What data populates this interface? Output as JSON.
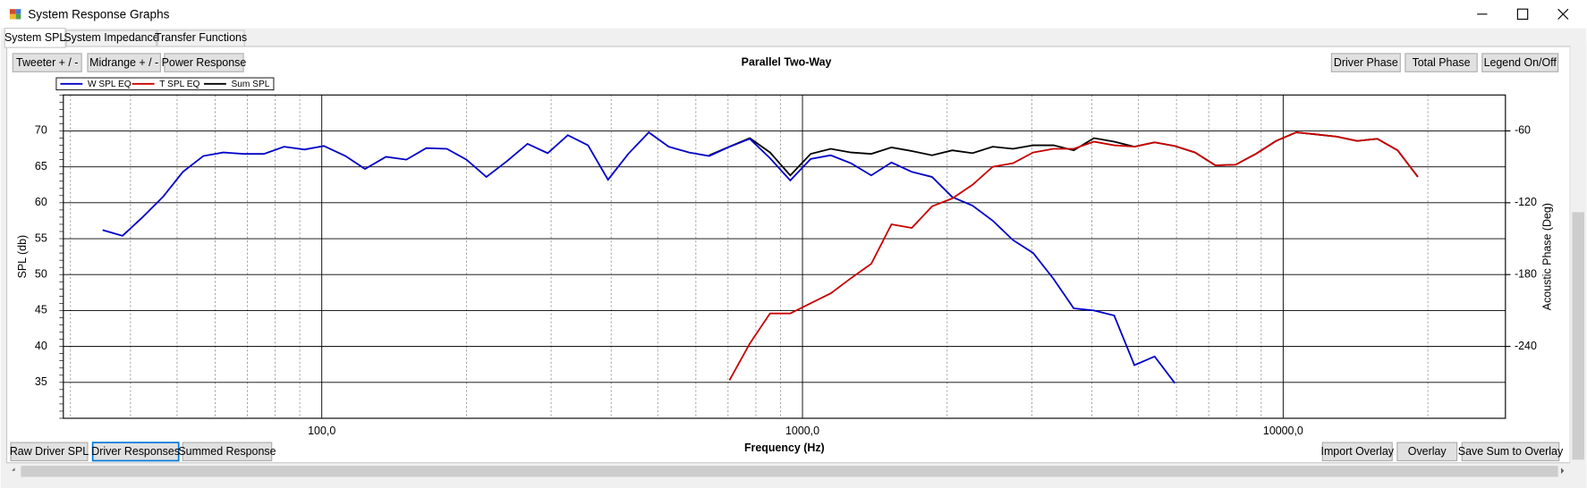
{
  "window": {
    "title": "System Response Graphs"
  },
  "tabs": [
    "System SPL",
    "System Impedance",
    "Transfer Functions"
  ],
  "top_buttons_left": [
    "Tweeter + / -",
    "Midrange + / -",
    "Power Response"
  ],
  "top_buttons_right": [
    "Driver Phase",
    "Total Phase",
    "Legend On/Off"
  ],
  "bottom_buttons_left": [
    "Raw Driver SPL",
    "Driver Responses",
    "Summed Response"
  ],
  "bottom_buttons_right": [
    "Import Overlay",
    "Overlay",
    "Save Sum to Overlay"
  ],
  "chart_data": {
    "type": "line",
    "title": "Parallel Two-Way",
    "x_label": "Frequency (Hz)",
    "y_label": "SPL (db)",
    "y2_label": "Acoustic Phase (Deg)",
    "log_x": true,
    "grid": true,
    "legend": "top-left",
    "xlim": [
      29,
      29000
    ],
    "xticks": [
      {
        "value": 100,
        "label": "100,0"
      },
      {
        "value": 1000,
        "label": "1000,0"
      },
      {
        "value": 10000,
        "label": "10000,0"
      }
    ],
    "x_minor_gridlines": [
      30,
      40,
      50,
      60,
      70,
      80,
      90,
      200,
      300,
      400,
      500,
      600,
      700,
      800,
      900,
      2000,
      3000,
      4000,
      5000,
      6000,
      7000,
      8000,
      9000,
      20000
    ],
    "ylim": [
      30,
      75
    ],
    "yticks": [
      35,
      40,
      45,
      50,
      55,
      60,
      65,
      70
    ],
    "y2lim": [
      -300,
      -30
    ],
    "y2ticks": [
      -240,
      -180,
      -120,
      -60
    ],
    "x": [
      35,
      38.5,
      42.4,
      46.7,
      51.4,
      56.7,
      62.4,
      68.8,
      75.8,
      83.5,
      92,
      101,
      112,
      123,
      136,
      150,
      165,
      182,
      200,
      220,
      243,
      268,
      295,
      325,
      358,
      394,
      434,
      479,
      527,
      581,
      640,
      705,
      777,
      856,
      943,
      1040,
      1145,
      1262,
      1390,
      1532,
      1688,
      1860,
      2049,
      2258,
      2488,
      2741,
      3020,
      3328,
      3666,
      4040,
      4451,
      4904,
      5403,
      5953,
      6559,
      7227,
      7963,
      8773,
      9667,
      10650,
      11740,
      12930,
      14250,
      15700,
      17300,
      19060,
      21000
    ],
    "series": [
      {
        "name": "W SPL EQ",
        "color": "#0000c8",
        "values": [
          56.2,
          55.4,
          58.0,
          60.8,
          64.3,
          66.5,
          67.0,
          66.8,
          66.8,
          67.8,
          67.4,
          67.9,
          66.5,
          64.7,
          66.4,
          66.0,
          67.6,
          67.5,
          66.0,
          63.6,
          65.8,
          68.2,
          66.9,
          69.4,
          68.0,
          63.2,
          66.8,
          69.8,
          67.8,
          67.0,
          66.5,
          67.8,
          68.9,
          66.2,
          63.1,
          66.1,
          66.6,
          65.5,
          63.8,
          65.6,
          64.3,
          63.6,
          60.8,
          59.6,
          57.5,
          54.8,
          53.0,
          49.4,
          45.3,
          45.0,
          44.3,
          37.4,
          38.6,
          34.9,
          null,
          null,
          null,
          null,
          null,
          null,
          null,
          null,
          null,
          null,
          null,
          null,
          null
        ]
      },
      {
        "name": "T SPL EQ",
        "color": "#c80000",
        "values": [
          null,
          null,
          null,
          null,
          null,
          null,
          null,
          null,
          null,
          null,
          null,
          null,
          null,
          null,
          null,
          null,
          null,
          null,
          null,
          null,
          null,
          null,
          null,
          null,
          null,
          null,
          null,
          null,
          null,
          null,
          null,
          35.3,
          40.4,
          44.6,
          44.6,
          46.0,
          47.4,
          49.5,
          51.5,
          57.0,
          56.5,
          59.5,
          60.6,
          62.5,
          65.0,
          65.5,
          67.0,
          67.5,
          67.5,
          68.5,
          68.0,
          67.8,
          68.4,
          67.9,
          67.0,
          65.2,
          65.3,
          66.8,
          68.6,
          69.8,
          69.5,
          69.2,
          68.6,
          68.9,
          67.3,
          63.6,
          null
        ]
      },
      {
        "name": "Sum SPL",
        "color": "#000000",
        "values": [
          null,
          null,
          null,
          null,
          null,
          null,
          null,
          null,
          null,
          null,
          null,
          null,
          null,
          null,
          null,
          null,
          null,
          null,
          null,
          null,
          null,
          null,
          null,
          null,
          null,
          null,
          null,
          null,
          null,
          null,
          66.6,
          67.8,
          69.0,
          67.0,
          63.8,
          66.8,
          67.5,
          67.0,
          66.8,
          67.7,
          67.2,
          66.6,
          67.3,
          66.9,
          67.8,
          67.5,
          68.0,
          68.0,
          67.3,
          69.0,
          68.5,
          67.8,
          68.4,
          67.9,
          67.0,
          65.2,
          65.3,
          66.8,
          68.6,
          69.8,
          69.5,
          69.2,
          68.6,
          68.9,
          67.3,
          63.6,
          null
        ]
      }
    ]
  }
}
